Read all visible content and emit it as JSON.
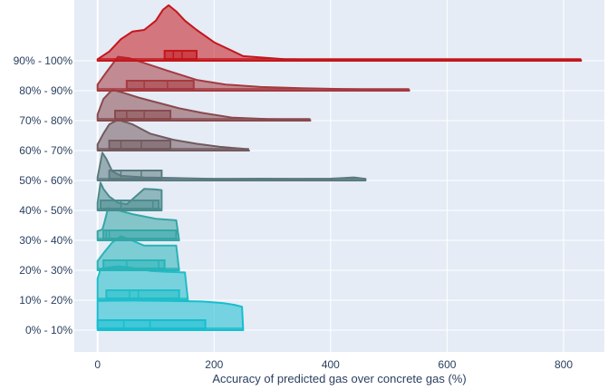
{
  "chart_data": {
    "type": "violin",
    "title": "",
    "xlabel": "Accuracy of predicted gas over concrete gas (%)",
    "ylabel": "",
    "xlim": [
      -40,
      870
    ],
    "xticks": [
      0,
      200,
      400,
      600,
      800
    ],
    "grid": true,
    "legend": "none",
    "categories": [
      "0% - 10%",
      "10% - 20%",
      "20% - 30%",
      "30% - 40%",
      "40% - 50%",
      "50% - 60%",
      "60% - 70%",
      "70% - 80%",
      "80% - 90%",
      "90% - 100%"
    ],
    "series": [
      {
        "color": "#17becf",
        "range": [
          0,
          250
        ],
        "quartiles": [
          0,
          45,
          90,
          185
        ],
        "density": [
          [
            0,
            0.95
          ],
          [
            60,
            0.96
          ],
          [
            120,
            0.95
          ],
          [
            180,
            0.93
          ],
          [
            215,
            0.88
          ],
          [
            235,
            0.82
          ],
          [
            248,
            0.76
          ],
          [
            250,
            0
          ]
        ]
      },
      {
        "color": "#1fbec8",
        "range": [
          0,
          155
        ],
        "quartiles": [
          15,
          55,
          70,
          140
        ],
        "density": [
          [
            0,
            0.7
          ],
          [
            5,
            1.0
          ],
          [
            15,
            1.05
          ],
          [
            35,
            1.1
          ],
          [
            60,
            1.05
          ],
          [
            90,
            0.95
          ],
          [
            120,
            0.92
          ],
          [
            150,
            0.9
          ],
          [
            155,
            0
          ]
        ]
      },
      {
        "color": "#28b4b8",
        "range": [
          0,
          140
        ],
        "quartiles": [
          10,
          50,
          105,
          115
        ],
        "density": [
          [
            0,
            0.3
          ],
          [
            10,
            0.55
          ],
          [
            25,
            0.9
          ],
          [
            40,
            1.1
          ],
          [
            55,
            1.0
          ],
          [
            80,
            0.8
          ],
          [
            110,
            0.8
          ],
          [
            135,
            0.8
          ],
          [
            140,
            0
          ]
        ]
      },
      {
        "color": "#35a6a6",
        "range": [
          0,
          140
        ],
        "quartiles": [
          10,
          15,
          20,
          135
        ],
        "density": [
          [
            0,
            0.3
          ],
          [
            8,
            0.35
          ],
          [
            12,
            0.6
          ],
          [
            18,
            1.05
          ],
          [
            30,
            1.0
          ],
          [
            60,
            0.85
          ],
          [
            100,
            0.7
          ],
          [
            135,
            0.65
          ],
          [
            140,
            0
          ]
        ]
      },
      {
        "color": "#4a8c8e",
        "range": [
          0,
          110
        ],
        "quartiles": [
          5,
          40,
          95,
          105
        ],
        "density": [
          [
            0,
            0.25
          ],
          [
            5,
            0.9
          ],
          [
            10,
            0.7
          ],
          [
            20,
            0.45
          ],
          [
            35,
            0.25
          ],
          [
            50,
            0.2
          ],
          [
            65,
            0.45
          ],
          [
            80,
            0.7
          ],
          [
            100,
            0.68
          ],
          [
            110,
            0.66
          ],
          [
            110,
            0
          ]
        ]
      },
      {
        "color": "#5b7a80",
        "range": [
          0,
          460
        ],
        "quartiles": [
          20,
          40,
          75,
          110
        ],
        "density": [
          [
            0,
            0.1
          ],
          [
            8,
            0.9
          ],
          [
            15,
            0.7
          ],
          [
            25,
            0.3
          ],
          [
            40,
            0.15
          ],
          [
            80,
            0.1
          ],
          [
            130,
            0.08
          ],
          [
            200,
            0.05
          ],
          [
            280,
            0.06
          ],
          [
            340,
            0.05
          ],
          [
            400,
            0.06
          ],
          [
            440,
            0.1
          ],
          [
            460,
            0.05
          ],
          [
            460,
            0
          ]
        ]
      },
      {
        "color": "#725a5e",
        "range": [
          0,
          260
        ],
        "quartiles": [
          20,
          40,
          75,
          125
        ],
        "density": [
          [
            0,
            0.2
          ],
          [
            10,
            0.55
          ],
          [
            20,
            0.85
          ],
          [
            35,
            1.0
          ],
          [
            60,
            0.85
          ],
          [
            90,
            0.55
          ],
          [
            130,
            0.35
          ],
          [
            170,
            0.22
          ],
          [
            210,
            0.12
          ],
          [
            250,
            0.06
          ],
          [
            260,
            0.0
          ]
        ]
      },
      {
        "color": "#894a4e",
        "range": [
          0,
          365
        ],
        "quartiles": [
          30,
          50,
          80,
          125
        ],
        "density": [
          [
            0,
            0.2
          ],
          [
            10,
            0.7
          ],
          [
            25,
            1.0
          ],
          [
            45,
            0.9
          ],
          [
            70,
            0.75
          ],
          [
            100,
            0.6
          ],
          [
            140,
            0.4
          ],
          [
            180,
            0.25
          ],
          [
            230,
            0.1
          ],
          [
            290,
            0.05
          ],
          [
            365,
            0.02
          ]
        ]
      },
      {
        "color": "#a53a40",
        "range": [
          0,
          535
        ],
        "quartiles": [
          50,
          80,
          120,
          165
        ],
        "density": [
          [
            0,
            0.2
          ],
          [
            15,
            0.6
          ],
          [
            35,
            1.1
          ],
          [
            55,
            1.05
          ],
          [
            80,
            0.9
          ],
          [
            120,
            0.65
          ],
          [
            170,
            0.35
          ],
          [
            220,
            0.2
          ],
          [
            280,
            0.12
          ],
          [
            350,
            0.08
          ],
          [
            430,
            0.05
          ],
          [
            500,
            0.03
          ],
          [
            535,
            0.02
          ]
        ]
      },
      {
        "color": "#c4161c",
        "range": [
          0,
          830
        ],
        "quartiles": [
          115,
          130,
          145,
          170
        ],
        "density": [
          [
            0,
            0.05
          ],
          [
            20,
            0.3
          ],
          [
            40,
            0.7
          ],
          [
            60,
            0.95
          ],
          [
            80,
            1.0
          ],
          [
            100,
            1.3
          ],
          [
            112,
            1.65
          ],
          [
            122,
            1.8
          ],
          [
            135,
            1.6
          ],
          [
            150,
            1.3
          ],
          [
            170,
            1.0
          ],
          [
            200,
            0.6
          ],
          [
            250,
            0.15
          ],
          [
            320,
            0.05
          ],
          [
            400,
            0.03
          ],
          [
            500,
            0.02
          ],
          [
            600,
            0.02
          ],
          [
            700,
            0.02
          ],
          [
            830,
            0.02
          ]
        ]
      }
    ]
  }
}
